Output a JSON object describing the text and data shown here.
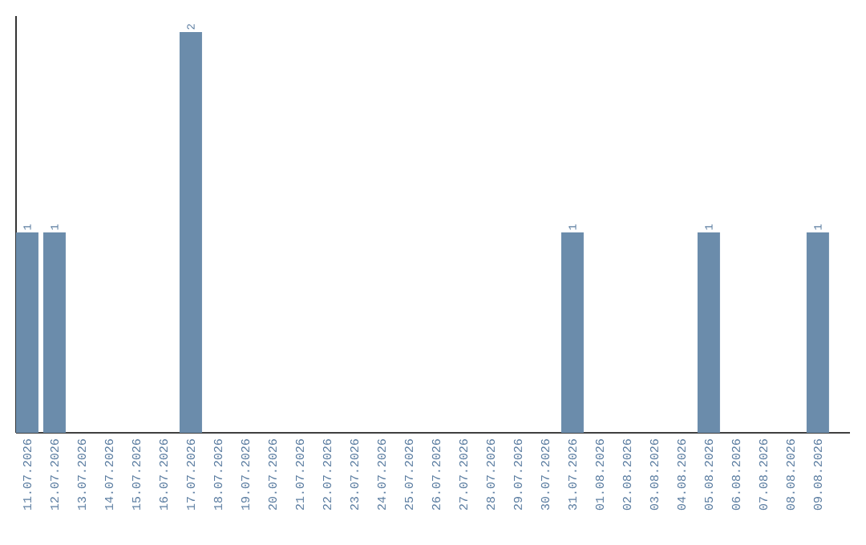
{
  "chart_data": {
    "type": "bar",
    "color": "#6b8cab",
    "categories": [
      "11.07.2026",
      "12.07.2026",
      "13.07.2026",
      "14.07.2026",
      "15.07.2026",
      "16.07.2026",
      "17.07.2026",
      "18.07.2026",
      "19.07.2026",
      "20.07.2026",
      "21.07.2026",
      "22.07.2026",
      "23.07.2026",
      "24.07.2026",
      "25.07.2026",
      "26.07.2026",
      "27.07.2026",
      "28.07.2026",
      "29.07.2026",
      "30.07.2026",
      "31.07.2026",
      "01.08.2026",
      "02.08.2026",
      "03.08.2026",
      "04.08.2026",
      "05.08.2026",
      "06.08.2026",
      "07.08.2026",
      "08.08.2026",
      "09.08.2026"
    ],
    "values": [
      1,
      1,
      0,
      0,
      0,
      0,
      2,
      0,
      0,
      0,
      0,
      0,
      0,
      0,
      0,
      0,
      0,
      0,
      0,
      0,
      1,
      0,
      0,
      0,
      0,
      1,
      0,
      0,
      0,
      1
    ],
    "value_labels": [
      "1",
      "1",
      null,
      null,
      null,
      null,
      "2",
      null,
      null,
      null,
      null,
      null,
      null,
      null,
      null,
      null,
      null,
      null,
      null,
      null,
      "1",
      null,
      null,
      null,
      null,
      "1",
      null,
      null,
      null,
      "1"
    ],
    "tick_labels": "x"
  }
}
